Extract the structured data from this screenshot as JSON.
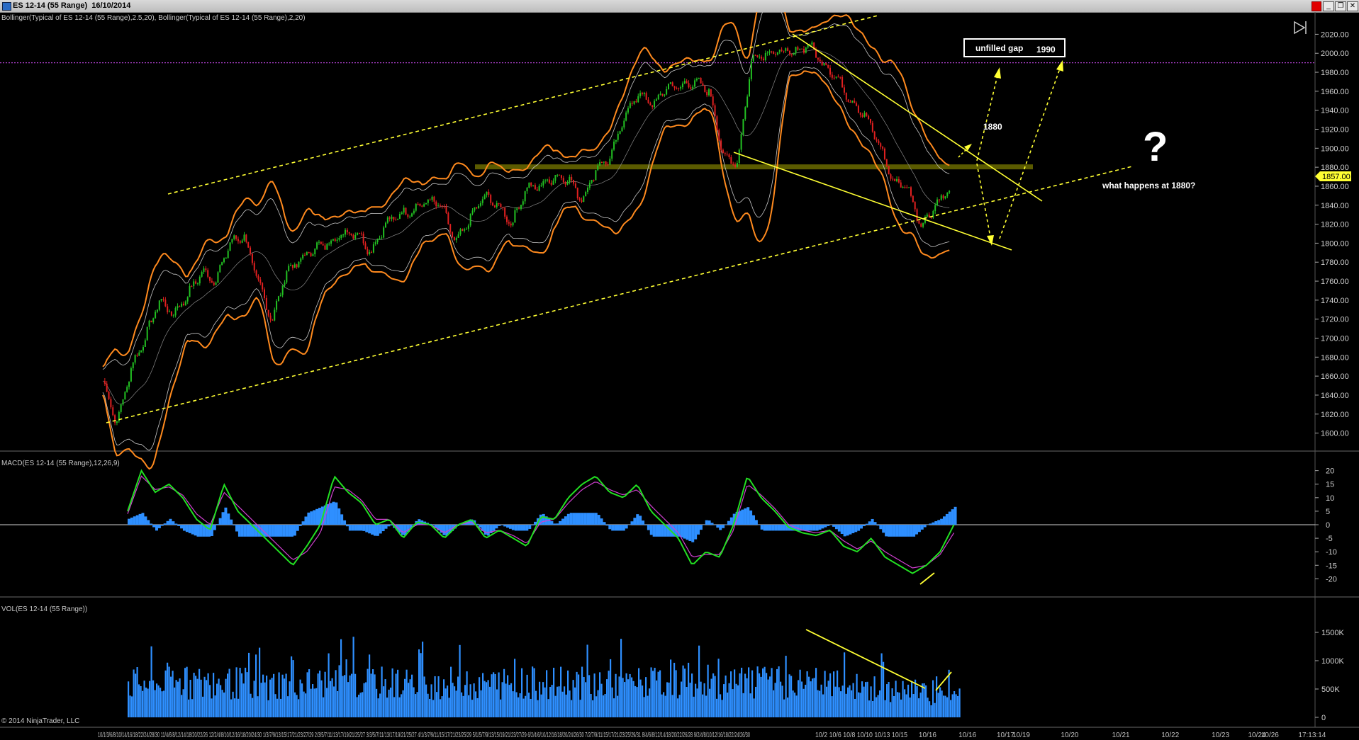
{
  "window": {
    "title": "ES 12-14 (55 Range)  16/10/2014",
    "minimize_glyph": "_",
    "restore_glyph": "❐",
    "close_glyph": "✕",
    "close_color": "#e00000"
  },
  "panels": {
    "price_label": "Bollinger(Typical of ES 12-14 (55 Range),2.5,20), Bollinger(Typical of ES 12-14 (55 Range),2,20)",
    "macd_label": "MACD(ES 12-14 (55 Range),12,26,9)",
    "vol_label": "VOL(ES 12-14 (55 Range))"
  },
  "copyright": "© 2014 NinjaTrader, LLC",
  "annotations": {
    "unfilled_gap": "unfilled gap",
    "gap_level": "1990",
    "level_1880": "1880",
    "question_mark": "?",
    "question": "what happens at 1880?"
  },
  "last_price": "1857.00",
  "colors": {
    "candle_up": "#22c022",
    "candle_down": "#e02020",
    "outer_band": "#ff8a1e",
    "inner_band": "#c8c8c8",
    "macd_line": "#22e022",
    "signal_line": "#d040d0",
    "hist": "#2e8fff",
    "volume": "#2e8fff",
    "trendline": "#ffff33",
    "resistance_zone": "#6b6b00",
    "gap_line": "#b040d0"
  },
  "chart_data": [
    {
      "type": "candlestick",
      "name": "price",
      "y_ticks": [
        "2020.00",
        "2000.00",
        "1980.00",
        "1960.00",
        "1940.00",
        "1920.00",
        "1900.00",
        "1880.00",
        "1860.00",
        "1840.00",
        "1820.00",
        "1800.00",
        "1780.00",
        "1760.00",
        "1740.00",
        "1720.00",
        "1700.00",
        "1680.00",
        "1660.00",
        "1640.00",
        "1620.00",
        "1600.00"
      ],
      "ylim": [
        1590,
        2030
      ],
      "grid": false,
      "overlays": [
        "Bollinger(2.5,20)",
        "Bollinger(2,20)"
      ],
      "close_path": [
        1655,
        1610,
        1668,
        1700,
        1740,
        1725,
        1745,
        1770,
        1760,
        1800,
        1808,
        1760,
        1718,
        1770,
        1782,
        1795,
        1800,
        1810,
        1812,
        1790,
        1820,
        1830,
        1835,
        1845,
        1840,
        1800,
        1825,
        1850,
        1840,
        1820,
        1858,
        1860,
        1870,
        1868,
        1845,
        1880,
        1890,
        1935,
        1958,
        1945,
        1965,
        1965,
        1970,
        1960,
        1890,
        1885,
        1995,
        2000,
        2002,
        2000,
        2010,
        1990,
        1975,
        1950,
        1935,
        1905,
        1865,
        1860,
        1818,
        1840,
        1857
      ],
      "horizontal_levels": [
        1990,
        1880
      ],
      "last": 1857.0
    },
    {
      "type": "line",
      "name": "macd",
      "y_ticks": [
        "20",
        "15",
        "10",
        "5",
        "0",
        "-5",
        "-10",
        "-15",
        "-20"
      ],
      "ylim": [
        -22,
        22
      ],
      "series": [
        {
          "name": "MACD",
          "values": [
            5,
            20,
            12,
            15,
            10,
            2,
            -2,
            15,
            5,
            0,
            -5,
            -10,
            -15,
            -8,
            0,
            18,
            12,
            8,
            0,
            2,
            -5,
            1,
            0,
            -5,
            0,
            2,
            -5,
            -2,
            -5,
            -8,
            3,
            2,
            10,
            15,
            18,
            12,
            10,
            15,
            5,
            0,
            -5,
            -15,
            -10,
            -12,
            0,
            18,
            10,
            5,
            -1,
            -3,
            -4,
            -2,
            -8,
            -10,
            -5,
            -12,
            -15,
            -18,
            -15,
            -10,
            0
          ]
        },
        {
          "name": "Signal",
          "values": [
            4,
            18,
            13,
            14,
            11,
            4,
            0,
            12,
            7,
            2,
            -3,
            -8,
            -13,
            -10,
            -3,
            14,
            13,
            9,
            2,
            2,
            -3,
            0,
            0,
            -3,
            0,
            1,
            -3,
            -2,
            -4,
            -7,
            1,
            2,
            8,
            13,
            16,
            13,
            11,
            13,
            7,
            2,
            -3,
            -12,
            -11,
            -11,
            -2,
            15,
            11,
            6,
            0,
            -2,
            -3,
            -2,
            -6,
            -9,
            -6,
            -10,
            -13,
            -16,
            -15,
            -11,
            -3
          ]
        }
      ]
    },
    {
      "type": "bar",
      "name": "volume",
      "y_ticks": [
        "1500K",
        "1000K",
        "500K",
        "0"
      ],
      "ylim": [
        0,
        1800000
      ]
    }
  ],
  "x_axis": {
    "dense_date_labels": "10/1/3/6/8/10/14/16/18/22/24/28/30 11/4/6/8/12/14/18/20/22/26 12/2/4/8/10/12/16/18/20/24/30 1/3/7/9/13/15/17/21/23/27/29 2/3/5/7/11/13/17/19/21/25/27 3/3/5/7/11/13/17/19/21/25/27 4/1/3/7/9/11/15/17/21/23/25/29 5/1/5/7/9/13/15/19/21/23/27/29 6/2/4/6/10/12/16/18/20/24/26/30 7/2/7/9/11/15/17/21/23/25/29/31 8/4/6/8/12/14/18/20/22/26/28 9/2/4/8/10/12/16/18/22/24/26/30",
    "dense_oct_labels": "10/2 10/6 10/8 10/10 10/13 10/15",
    "labels": [
      {
        "text": "10/16",
        "x": 1060
      },
      {
        "text": "10/16",
        "x": 1106
      },
      {
        "text": "10/17",
        "x": 1150
      },
      {
        "text": "10/19",
        "x": 1168
      },
      {
        "text": "10/20",
        "x": 1224
      },
      {
        "text": "10/21",
        "x": 1283
      },
      {
        "text": "10/22",
        "x": 1340
      },
      {
        "text": "10/23",
        "x": 1398
      },
      {
        "text": "10/24",
        "x": 1440
      },
      {
        "text": "10/26",
        "x": 1455
      },
      {
        "text": "17:13:14",
        "x": 1498
      }
    ]
  }
}
